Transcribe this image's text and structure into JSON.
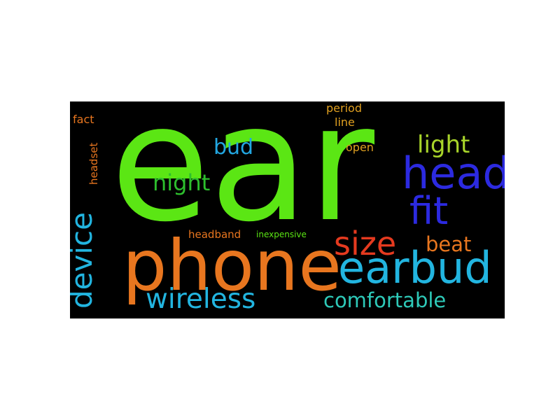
{
  "words": {
    "ear": {
      "text": "ear",
      "color": "#5BE614"
    },
    "phone": {
      "text": "phone",
      "color": "#E8761F"
    },
    "earbud": {
      "text": "earbud",
      "color": "#22B5E0"
    },
    "head": {
      "text": "head",
      "color": "#2C2AE0"
    },
    "fit": {
      "text": "fit",
      "color": "#2C2AE0"
    },
    "size": {
      "text": "size",
      "color": "#E53A1F"
    },
    "device": {
      "text": "device",
      "color": "#22B5E0"
    },
    "wireless": {
      "text": "wireless",
      "color": "#22B5E0"
    },
    "comfortable": {
      "text": "comfortable",
      "color": "#2EC9B8"
    },
    "night": {
      "text": "night",
      "color": "#2DBE2D"
    },
    "light": {
      "text": "light",
      "color": "#A8D42A"
    },
    "bud": {
      "text": "bud",
      "color": "#22A6E0"
    },
    "beat": {
      "text": "beat",
      "color": "#E8761F"
    },
    "headband": {
      "text": "headband",
      "color": "#E8761F"
    },
    "inexpensive": {
      "text": "inexpensive",
      "color": "#5BE614"
    },
    "period": {
      "text": "period",
      "color": "#E0A020"
    },
    "line": {
      "text": "line",
      "color": "#E0A020"
    },
    "open": {
      "text": "open",
      "color": "#E0A020"
    },
    "fact": {
      "text": "fact",
      "color": "#E8761F"
    },
    "headset": {
      "text": "headset",
      "color": "#E8761F"
    }
  }
}
